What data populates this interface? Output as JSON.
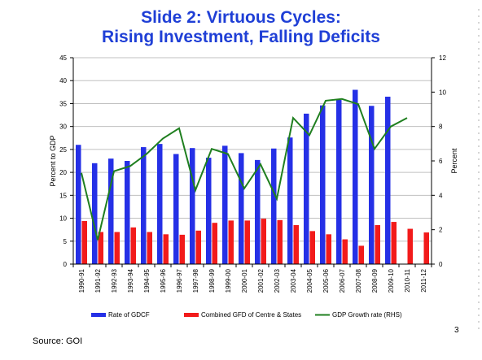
{
  "slide": {
    "title_line1": "Slide 2: Virtuous Cycles:",
    "title_line2": "Rising Investment, Falling Deficits",
    "source": "Source: GOI",
    "page_number": "3"
  },
  "colors": {
    "title": "#1f3fd6",
    "gdcf": "#2530e6",
    "gfd": "#f21b1b",
    "growth": "#1f7f1f",
    "grid": "#c0c0c0"
  },
  "chart_data": {
    "type": "bar",
    "combo": "bar+line",
    "categories": [
      "1990-91",
      "1991-92",
      "1992-93",
      "1993-94",
      "1994-95",
      "1995-96",
      "1996-97",
      "1997-98",
      "1998-99",
      "1999-00",
      "2000-01",
      "2001-02",
      "2002-03",
      "2003-04",
      "2004-05",
      "2005-06",
      "2006-07",
      "2007-08",
      "2008-09",
      "2009-10",
      "2010-11",
      "2011-12"
    ],
    "series": [
      {
        "name": "Rate of GDCF",
        "kind": "bar",
        "axis": "left",
        "values": [
          26.0,
          22.0,
          23.0,
          22.5,
          25.5,
          26.2,
          24.0,
          25.3,
          23.2,
          25.8,
          24.2,
          22.7,
          25.2,
          27.6,
          32.8,
          34.6,
          35.8,
          38.0,
          34.5,
          36.5,
          null,
          null
        ]
      },
      {
        "name": "Combined GFD of Centre & States",
        "kind": "bar",
        "axis": "left",
        "values": [
          9.4,
          7.0,
          7.0,
          8.0,
          7.0,
          6.5,
          6.4,
          7.3,
          9.0,
          9.5,
          9.5,
          9.9,
          9.6,
          8.5,
          7.2,
          6.5,
          5.4,
          4.0,
          8.5,
          9.2,
          7.7,
          6.9
        ]
      },
      {
        "name": "GDP Growth rate (RHS)",
        "kind": "line",
        "axis": "right",
        "values": [
          5.3,
          1.4,
          5.4,
          5.7,
          6.4,
          7.3,
          7.9,
          4.3,
          6.7,
          6.4,
          4.4,
          5.8,
          3.8,
          8.5,
          7.5,
          9.5,
          9.6,
          9.3,
          6.7,
          8.0,
          8.5,
          null
        ]
      }
    ],
    "y_left": {
      "label": "Percent to GDP",
      "min": 0,
      "max": 45,
      "ticks": [
        0,
        5,
        10,
        15,
        20,
        25,
        30,
        35,
        40,
        45
      ]
    },
    "y_right": {
      "label": "Percent",
      "min": 0,
      "max": 12,
      "ticks": [
        0,
        2,
        4,
        6,
        8,
        10,
        12
      ]
    },
    "grid": true,
    "legend_position": "bottom"
  }
}
